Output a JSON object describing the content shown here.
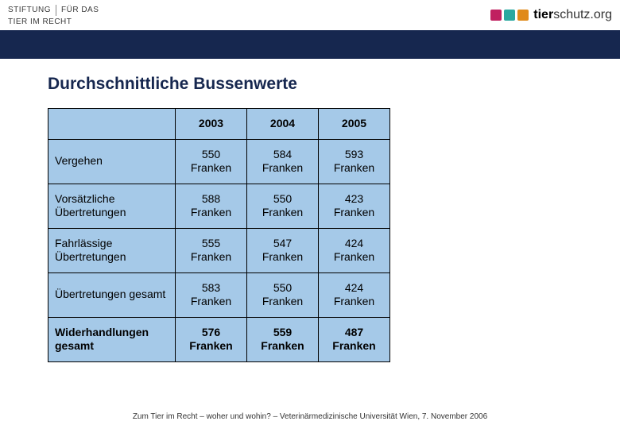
{
  "header": {
    "left_line1a": "STIFTUNG",
    "left_line1b": "FÜR DAS",
    "left_line2": "TIER IM RECHT",
    "right_bold": "tier",
    "right_rest": "schutz.org",
    "box_colors": [
      "#c02060",
      "#2aa8a0",
      "#e08a1a"
    ]
  },
  "title": "Durchschnittliche Bussenwerte",
  "table": {
    "background": "#a5c9e8",
    "columns": [
      "2003",
      "2004",
      "2005"
    ],
    "rows": [
      {
        "label": "Vergehen",
        "values": [
          "550 Franken",
          "584 Franken",
          "593 Franken"
        ],
        "bold": false
      },
      {
        "label": "Vorsätzliche Übertretungen",
        "values": [
          "588 Franken",
          "550 Franken",
          "423 Franken"
        ],
        "bold": false
      },
      {
        "label": "Fahrlässige Übertretungen",
        "values": [
          "555 Franken",
          "547 Franken",
          "424 Franken"
        ],
        "bold": false
      },
      {
        "label": "Übertretungen gesamt",
        "values": [
          "583 Franken",
          "550 Franken",
          "424 Franken"
        ],
        "bold": false
      },
      {
        "label": "Widerhandlungen gesamt",
        "values": [
          "576 Franken",
          "559 Franken",
          "487 Franken"
        ],
        "bold": true
      }
    ]
  },
  "footer": "Zum Tier im Recht – woher und wohin? – Veterinärmedizinische Universität Wien, 7. November 2006"
}
